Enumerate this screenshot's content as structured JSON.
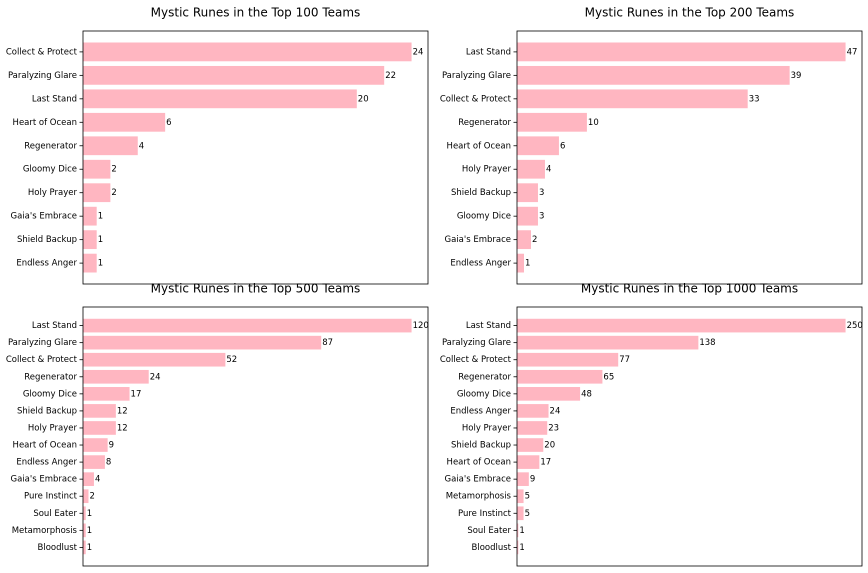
{
  "chart_data": [
    {
      "type": "barh",
      "title": "Mystic Runes in the Top 100 Teams",
      "color": "#ffb6c1",
      "categories": [
        "Collect & Protect",
        "Paralyzing Glare",
        "Last Stand",
        "Heart of Ocean",
        "Regenerator",
        "Gloomy Dice",
        "Holy Prayer",
        "Gaia's Embrace",
        "Shield Backup",
        "Endless Anger"
      ],
      "values": [
        24,
        22,
        20,
        6,
        4,
        2,
        2,
        1,
        1,
        1
      ],
      "xlim": [
        0,
        25.2
      ]
    },
    {
      "type": "barh",
      "title": "Mystic Runes in the Top 200 Teams",
      "color": "#ffb6c1",
      "categories": [
        "Last Stand",
        "Paralyzing Glare",
        "Collect & Protect",
        "Regenerator",
        "Heart of Ocean",
        "Holy Prayer",
        "Shield Backup",
        "Gloomy Dice",
        "Gaia's Embrace",
        "Endless Anger"
      ],
      "values": [
        47,
        39,
        33,
        10,
        6,
        4,
        3,
        3,
        2,
        1
      ],
      "xlim": [
        0,
        49.35
      ]
    },
    {
      "type": "barh",
      "title": "Mystic Runes in the Top 500 Teams",
      "color": "#ffb6c1",
      "categories": [
        "Last Stand",
        "Paralyzing Glare",
        "Collect & Protect",
        "Regenerator",
        "Gloomy Dice",
        "Shield Backup",
        "Holy Prayer",
        "Heart of Ocean",
        "Endless Anger",
        "Gaia's Embrace",
        "Pure Instinct",
        "Soul Eater",
        "Metamorphosis",
        "Bloodlust"
      ],
      "values": [
        120,
        87,
        52,
        24,
        17,
        12,
        12,
        9,
        8,
        4,
        2,
        1,
        1,
        1
      ],
      "xlim": [
        0,
        126
      ]
    },
    {
      "type": "barh",
      "title": "Mystic Runes in the Top 1000 Teams",
      "color": "#ffb6c1",
      "categories": [
        "Last Stand",
        "Paralyzing Glare",
        "Collect & Protect",
        "Regenerator",
        "Gloomy Dice",
        "Endless Anger",
        "Holy Prayer",
        "Shield Backup",
        "Heart of Ocean",
        "Gaia's Embrace",
        "Metamorphosis",
        "Pure Instinct",
        "Soul Eater",
        "Bloodlust"
      ],
      "values": [
        250,
        138,
        77,
        65,
        48,
        24,
        23,
        20,
        17,
        9,
        5,
        5,
        1,
        1
      ],
      "xlim": [
        0,
        262.5
      ]
    }
  ]
}
